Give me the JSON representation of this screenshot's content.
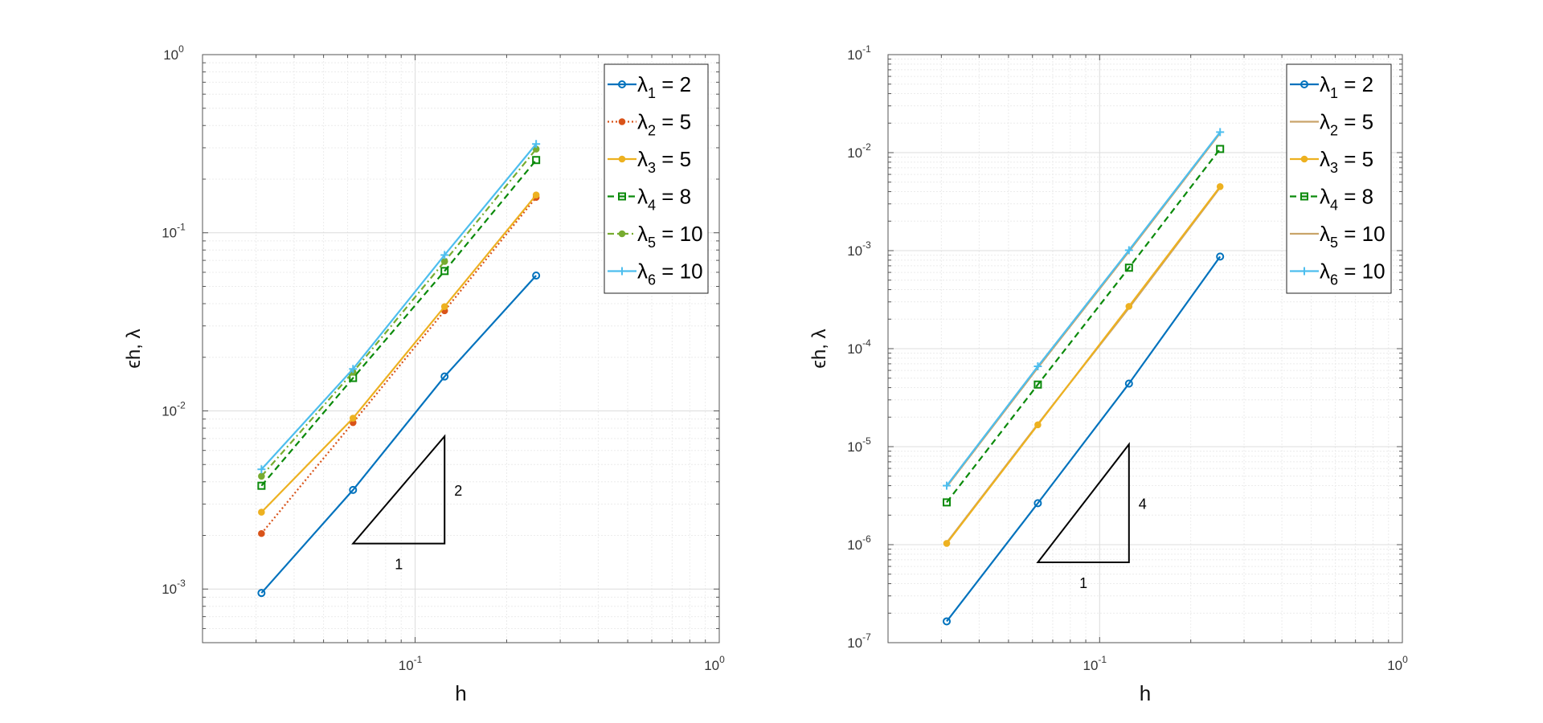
{
  "charts": [
    {
      "type": "line",
      "xscale": "log",
      "yscale": "log",
      "xlim": [
        0.02,
        1
      ],
      "ylim": [
        0.0005,
        1
      ],
      "xlabel": "h",
      "ylabel": "ϵh, λ",
      "grid": true,
      "legend_position": "top-right",
      "x_ticks": [
        {
          "value": 0.1,
          "base": "10",
          "exp": "-1"
        },
        {
          "value": 1,
          "base": "10",
          "exp": "0"
        }
      ],
      "y_ticks": [
        {
          "value": 0.001,
          "base": "10",
          "exp": "-3"
        },
        {
          "value": 0.01,
          "base": "10",
          "exp": "-2"
        },
        {
          "value": 0.1,
          "base": "10",
          "exp": "-1"
        },
        {
          "value": 1,
          "base": "10",
          "exp": "0"
        }
      ],
      "x": [
        0.03125,
        0.0625,
        0.125,
        0.25
      ],
      "series": [
        {
          "name": "λ1 = 2",
          "label_main": "λ",
          "label_sub": "1",
          "label_rest": " = 2",
          "color": "#0072BD",
          "dash": "",
          "marker": "circle",
          "values": [
            0.00095,
            0.0036,
            0.0156,
            0.0575
          ]
        },
        {
          "name": "λ2 = 5",
          "label_main": "λ",
          "label_sub": "2",
          "label_rest": " = 5",
          "color": "#D95319",
          "dash": "2,3",
          "marker": "dot",
          "values": [
            0.00205,
            0.0086,
            0.0365,
            0.158
          ]
        },
        {
          "name": "λ3 = 5",
          "label_main": "λ",
          "label_sub": "3",
          "label_rest": " = 5",
          "color": "#EDB120",
          "dash": "",
          "marker": "dot",
          "values": [
            0.0027,
            0.0091,
            0.0385,
            0.163
          ]
        },
        {
          "name": "λ4 = 8",
          "label_main": "λ",
          "label_sub": "4",
          "label_rest": " = 8",
          "color": "#0B8A0B",
          "dash": "8,5",
          "marker": "square",
          "values": [
            0.0038,
            0.0153,
            0.061,
            0.256
          ]
        },
        {
          "name": "λ5 = 10",
          "label_main": "λ",
          "label_sub": "5",
          "label_rest": " = 10",
          "color": "#77AC30",
          "dash": "8,4,2,4",
          "marker": "dot",
          "values": [
            0.0043,
            0.0165,
            0.069,
            0.295
          ]
        },
        {
          "name": "λ6 = 10",
          "label_main": "λ",
          "label_sub": "6",
          "label_rest": " = 10",
          "color": "#4DBEEE",
          "dash": "",
          "marker": "plus",
          "values": [
            0.0047,
            0.0172,
            0.075,
            0.315
          ]
        }
      ],
      "slope_triangle": {
        "h": [
          0.0625,
          0.125
        ],
        "y_base": 0.0018,
        "slope": 2,
        "run_label": "1",
        "rise_label": "2"
      }
    },
    {
      "type": "line",
      "xscale": "log",
      "yscale": "log",
      "xlim": [
        0.02,
        1
      ],
      "ylim": [
        1e-07,
        0.1
      ],
      "xlabel": "h",
      "ylabel": "ϵh, λ",
      "grid": true,
      "legend_position": "top-right",
      "x_ticks": [
        {
          "value": 0.1,
          "base": "10",
          "exp": "-1"
        },
        {
          "value": 1,
          "base": "10",
          "exp": "0"
        }
      ],
      "y_ticks": [
        {
          "value": 1e-07,
          "base": "10",
          "exp": "-7"
        },
        {
          "value": 1e-06,
          "base": "10",
          "exp": "-6"
        },
        {
          "value": 1e-05,
          "base": "10",
          "exp": "-5"
        },
        {
          "value": 0.0001,
          "base": "10",
          "exp": "-4"
        },
        {
          "value": 0.001,
          "base": "10",
          "exp": "-3"
        },
        {
          "value": 0.01,
          "base": "10",
          "exp": "-2"
        },
        {
          "value": 0.1,
          "base": "10",
          "exp": "-1"
        }
      ],
      "x": [
        0.03125,
        0.0625,
        0.125,
        0.25
      ],
      "series": [
        {
          "name": "λ1 = 2",
          "label_main": "λ",
          "label_sub": "1",
          "label_rest": " = 2",
          "color": "#0072BD",
          "dash": "",
          "marker": "circle",
          "values": [
            1.65e-07,
            2.65e-06,
            4.4e-05,
            0.00087
          ]
        },
        {
          "name": "λ2 = 5",
          "label_main": "λ",
          "label_sub": "2",
          "label_rest": " = 5",
          "color": "#C9A46A",
          "dash": "",
          "marker": "none",
          "values": [
            1.05e-06,
            1.7e-05,
            0.00026,
            0.0044
          ]
        },
        {
          "name": "λ3 = 5",
          "label_main": "λ",
          "label_sub": "3",
          "label_rest": " = 5",
          "color": "#EDB120",
          "dash": "",
          "marker": "dot",
          "values": [
            1.03e-06,
            1.67e-05,
            0.00027,
            0.0045
          ]
        },
        {
          "name": "λ4 = 8",
          "label_main": "λ",
          "label_sub": "4",
          "label_rest": " = 8",
          "color": "#0B8A0B",
          "dash": "8,5",
          "marker": "square",
          "values": [
            2.7e-06,
            4.3e-05,
            0.00067,
            0.0109
          ]
        },
        {
          "name": "λ5 = 10",
          "label_main": "λ",
          "label_sub": "5",
          "label_rest": " = 10",
          "color": "#C9A46A",
          "dash": "",
          "marker": "none",
          "values": [
            3.9e-06,
            6.4e-05,
            0.00098,
            0.0158
          ]
        },
        {
          "name": "λ6 = 10",
          "label_main": "λ",
          "label_sub": "6",
          "label_rest": " = 10",
          "color": "#4DBEEE",
          "dash": "",
          "marker": "plus",
          "values": [
            4e-06,
            6.6e-05,
            0.00101,
            0.0162
          ]
        }
      ],
      "slope_triangle": {
        "h": [
          0.0625,
          0.125
        ],
        "y_base": 6.6e-07,
        "slope": 4,
        "run_label": "1",
        "rise_label": "4"
      }
    }
  ]
}
